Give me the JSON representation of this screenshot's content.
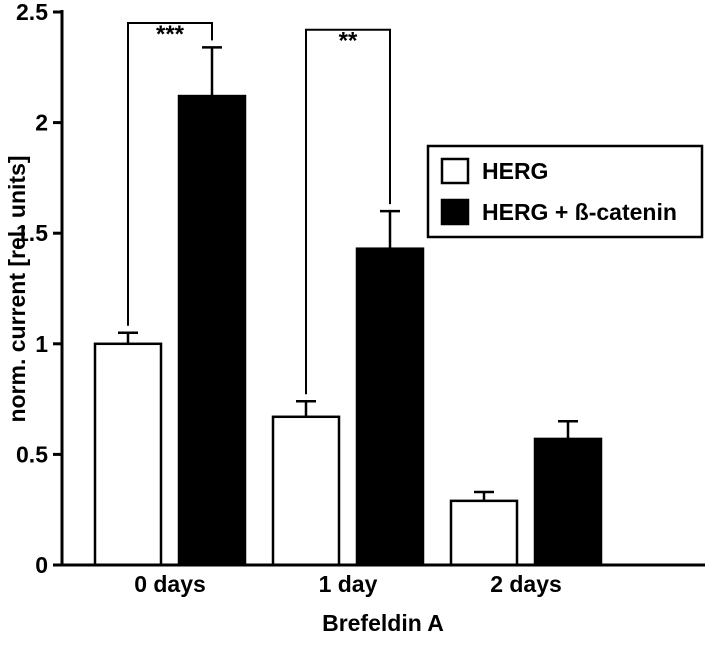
{
  "figure": {
    "background": "#ffffff",
    "axis_color": "#000000"
  },
  "chart_data": {
    "type": "bar",
    "title": "",
    "xlabel": "Brefeldin A",
    "ylabel": "norm. current [rel. units]",
    "ylim": [
      0,
      2.5
    ],
    "yticks": [
      0,
      0.5,
      1,
      1.5,
      2,
      2.5
    ],
    "ytick_labels": [
      "0",
      "0.5",
      "1",
      "1.5",
      "2",
      "2.5"
    ],
    "categories": [
      "0 days",
      "1 day",
      "2 days"
    ],
    "series": [
      {
        "name": "HERG",
        "fill": "#ffffff",
        "values": [
          1.0,
          0.67,
          0.29
        ],
        "errors": [
          0.05,
          0.07,
          0.04
        ]
      },
      {
        "name": "HERG + ß-catenin",
        "fill": "#000000",
        "values": [
          2.12,
          1.43,
          0.57
        ],
        "errors": [
          0.22,
          0.17,
          0.08
        ]
      }
    ],
    "legend": {
      "position": "upper right",
      "entries": [
        "HERG",
        "HERG + ß-catenin"
      ]
    },
    "grid": false,
    "annotations": [
      {
        "type": "significance-bracket",
        "label": "***",
        "category": "0 days",
        "top": 2.45
      },
      {
        "type": "significance-bracket",
        "label": "**",
        "category": "1 day",
        "top": 2.42
      }
    ]
  }
}
